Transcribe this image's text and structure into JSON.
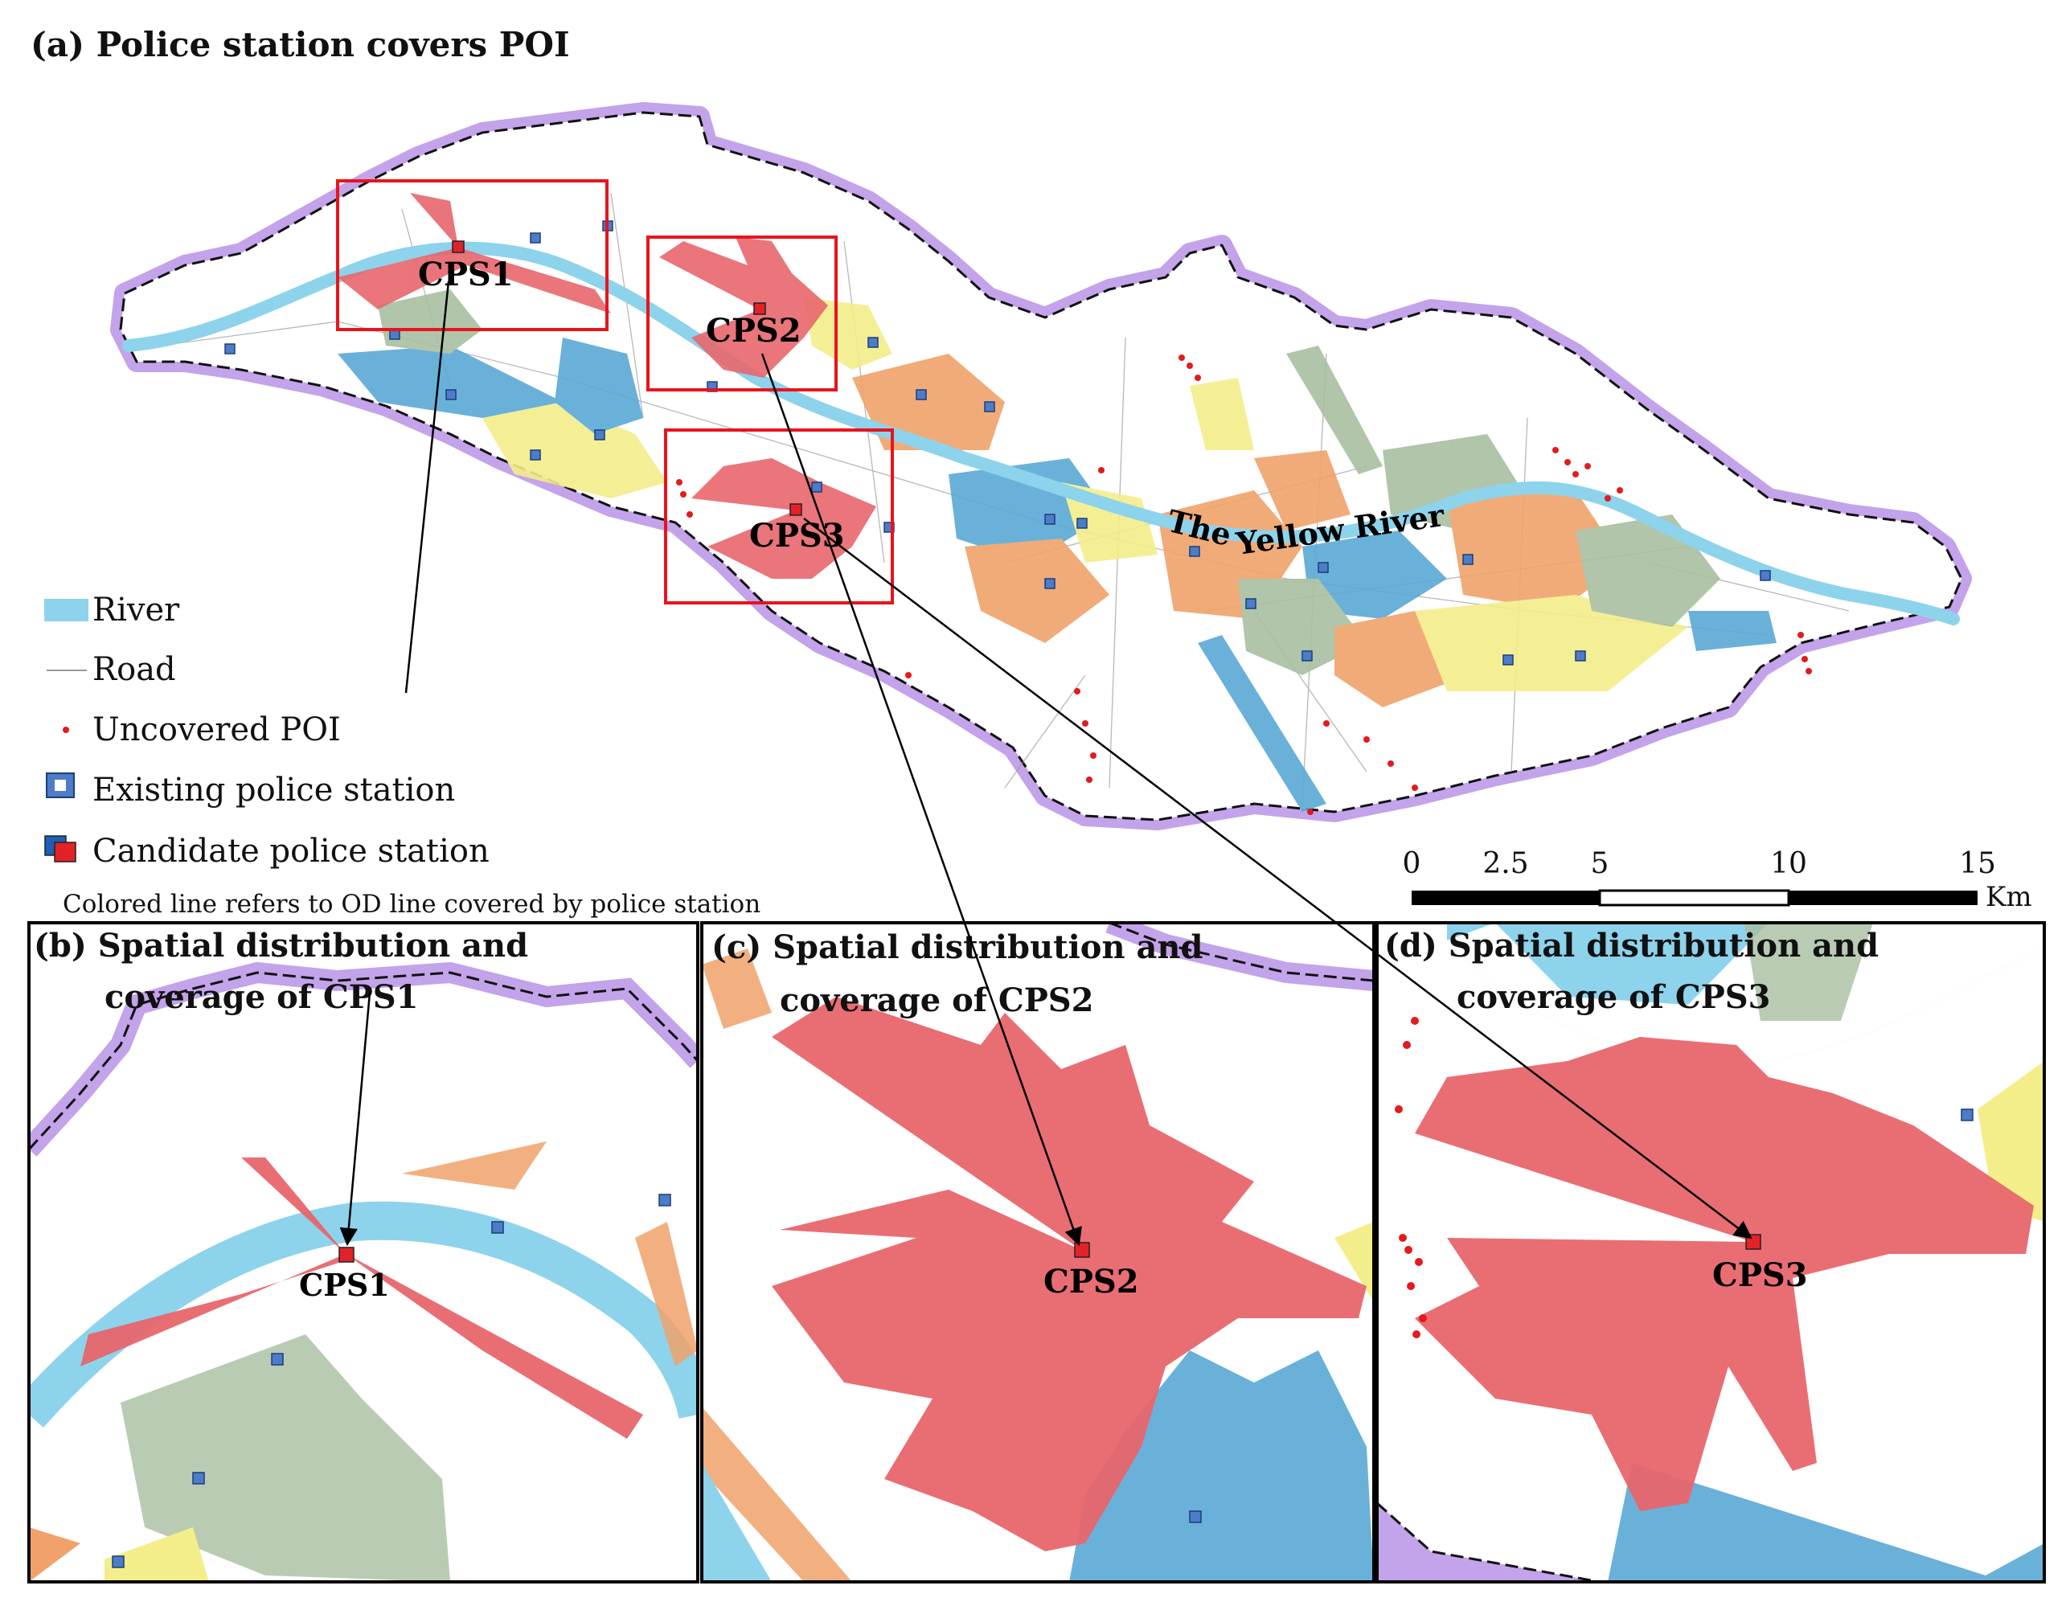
{
  "panel_a": {
    "title": "(a) Police station covers POI"
  },
  "panel_b": {
    "title_line1": "(b) Spatial distribution and",
    "title_line2": "coverage of CPS1"
  },
  "panel_c": {
    "title_line1": "(c) Spatial distribution and",
    "title_line2": "coverage of CPS2"
  },
  "panel_d": {
    "title_line1": "(d) Spatial distribution and",
    "title_line2": "coverage of CPS3"
  },
  "candidates": {
    "cps1": "CPS1",
    "cps2": "CPS2",
    "cps3": "CPS3"
  },
  "river_label_the": "The",
  "river_label_name": "Yellow River",
  "legend": {
    "river": "River",
    "road": "Road",
    "uncovered_poi": "Uncovered POI",
    "existing_station": "Existing police station",
    "candidate_station": "Candidate police station",
    "note": "Colored line refers to OD line covered by police station"
  },
  "scale_bar": {
    "ticks": [
      "0",
      "2.5",
      "5",
      "10",
      "15"
    ],
    "unit": "Km"
  },
  "colors": {
    "river": "#8dd3ec",
    "boundary_halo": "#b98fe3",
    "cps_coverage": "#e8666d",
    "blue_zone": "#5aa9d6",
    "orange_zone": "#f0a26a",
    "green_zone": "#a8bfa0",
    "yellow_zone": "#f3ee8a",
    "uncovered_poi": "#e41a1c",
    "highlight_box": "#e8141c"
  },
  "icons": [
    "existing-police-station-icon",
    "candidate-police-station-icon"
  ]
}
